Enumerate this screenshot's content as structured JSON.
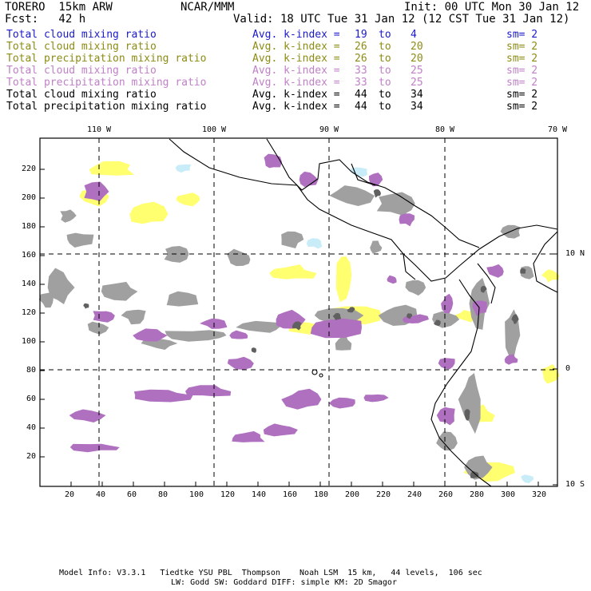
{
  "header": {
    "model": "TORERO  15km ARW",
    "center": "NCAR/MMM",
    "init": "Init: 00 UTC Mon 30 Jan 12",
    "fcst": "Fcst:   42 h",
    "valid": "Valid: 18 UTC Tue 31 Jan 12 (12 CST Tue 31 Jan 12)"
  },
  "legend": [
    {
      "name": "Total cloud mixing ratio",
      "kindex": "Avg. k-index =",
      "k1": "19",
      "to": "to",
      "k2": "4",
      "sm": "sm= 2",
      "color": "#1a1acc"
    },
    {
      "name": "Total cloud mixing ratio",
      "kindex": "Avg. k-index =",
      "k1": "26",
      "to": "to",
      "k2": "20",
      "sm": "sm= 2",
      "color": "#8c8c14"
    },
    {
      "name": "Total precipitation mixing ratio",
      "kindex": "Avg. k-index =",
      "k1": "26",
      "to": "to",
      "k2": "20",
      "sm": "sm= 2",
      "color": "#8c8c14"
    },
    {
      "name": "Total cloud mixing ratio",
      "kindex": "Avg. k-index =",
      "k1": "33",
      "to": "to",
      "k2": "25",
      "sm": "sm= 2",
      "color": "#c080c8"
    },
    {
      "name": "Total precipitation mixing ratio",
      "kindex": "Avg. k-index =",
      "k1": "33",
      "to": "to",
      "k2": "25",
      "sm": "sm= 2",
      "color": "#c080c8"
    },
    {
      "name": "Total cloud mixing ratio",
      "kindex": "Avg. k-index =",
      "k1": "44",
      "to": "to",
      "k2": "34",
      "sm": "sm= 2",
      "color": "#000000"
    },
    {
      "name": "Total precipitation mixing ratio",
      "kindex": "Avg. k-index =",
      "k1": "44",
      "to": "to",
      "k2": "34",
      "sm": "sm= 2",
      "color": "#000000"
    }
  ],
  "axes": {
    "top_lon": [
      "110 W",
      "100 W",
      "90 W",
      "80 W",
      "70 W"
    ],
    "right_lat": [
      "10 N",
      "0",
      "10 S"
    ],
    "left_y": [
      "220",
      "200",
      "180",
      "160",
      "140",
      "120",
      "100",
      "80",
      "60",
      "40",
      "20"
    ],
    "bottom_x": [
      "20",
      "40",
      "60",
      "80",
      "100",
      "120",
      "140",
      "160",
      "180",
      "200",
      "220",
      "240",
      "260",
      "280",
      "300",
      "320"
    ]
  },
  "footer": {
    "line1": "Model Info: V3.3.1   Tiedtke YSU PBL  Thompson    Noah LSM  15 km,   44 levels,  106 sec",
    "line2": "LW: Godd SW: Goddard DIFF: simple KM: 2D Smagor"
  },
  "colors": {
    "gray": "#a0a0a0",
    "darkgray": "#606060",
    "purple": "#b070c0",
    "yellow": "#ffff70",
    "lightblue": "#c8ecf8",
    "frame": "#000000"
  }
}
